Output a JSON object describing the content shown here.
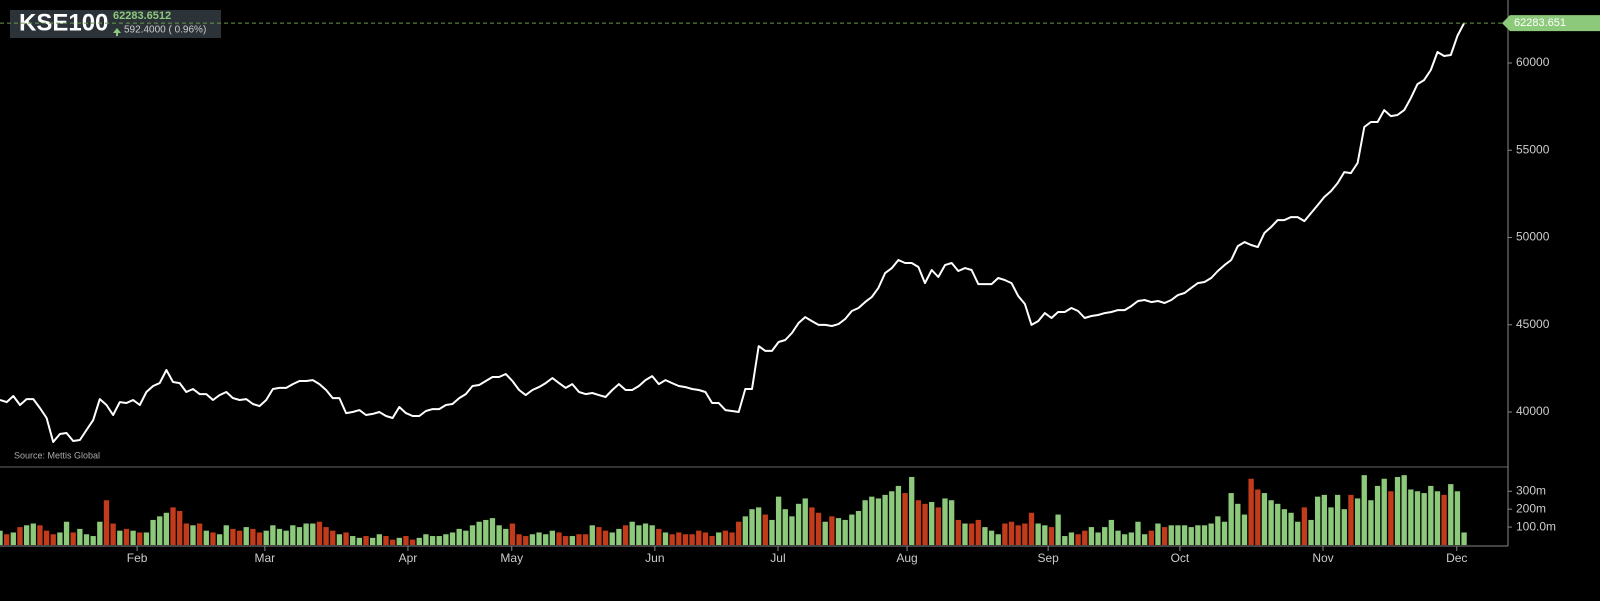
{
  "chart_data": {
    "type": "line",
    "title": "KSE100",
    "last_price": "62283.6512",
    "change": "592.4000 ( 0.96%)",
    "source": "Source: Mettis Global",
    "last_value_label": "62283.651",
    "color": "#ffffff",
    "grid": false,
    "xlim": [
      0,
      226.6
    ],
    "xticks": [
      {
        "value": 20.6,
        "label": "Feb"
      },
      {
        "value": 39.8,
        "label": "Mar"
      },
      {
        "value": 61.3,
        "label": "Apr"
      },
      {
        "value": 76.9,
        "label": "May"
      },
      {
        "value": 98.4,
        "label": "Jun"
      },
      {
        "value": 116.9,
        "label": "Jul"
      },
      {
        "value": 136.3,
        "label": "Aug"
      },
      {
        "value": 157.5,
        "label": "Sep"
      },
      {
        "value": 177.3,
        "label": "Oct"
      },
      {
        "value": 198.8,
        "label": "Nov"
      },
      {
        "value": 218.9,
        "label": "Dec"
      }
    ],
    "ylim": [
      36850,
      63610
    ],
    "yticks": [
      40000,
      45000,
      50000,
      55000,
      60000
    ],
    "values": [
      40690,
      40570,
      40920,
      40400,
      40740,
      40740,
      40230,
      39660,
      38280,
      38740,
      38800,
      38340,
      38400,
      38970,
      39540,
      40740,
      40400,
      39830,
      40570,
      40520,
      40690,
      40400,
      41150,
      41490,
      41660,
      42410,
      41720,
      41660,
      41150,
      41320,
      41030,
      41030,
      40690,
      40970,
      41150,
      40800,
      40690,
      40740,
      40460,
      40340,
      40690,
      41320,
      41380,
      41380,
      41600,
      41780,
      41780,
      41830,
      41600,
      41260,
      40800,
      40800,
      39940,
      40000,
      40110,
      39830,
      39890,
      40000,
      39770,
      39660,
      40290,
      39940,
      39770,
      39770,
      40060,
      40170,
      40170,
      40400,
      40460,
      40800,
      41030,
      41490,
      41550,
      41780,
      42010,
      42010,
      42180,
      41780,
      41260,
      40970,
      41260,
      41430,
      41660,
      41950,
      41660,
      41380,
      41600,
      41150,
      41030,
      41090,
      40970,
      40860,
      41260,
      41600,
      41260,
      41260,
      41490,
      41830,
      42060,
      41600,
      41830,
      41660,
      41490,
      41430,
      41320,
      41260,
      41150,
      40520,
      40520,
      40110,
      40060,
      40000,
      41320,
      41320,
      43780,
      43500,
      43500,
      44010,
      44130,
      44530,
      45100,
      45440,
      45210,
      44990,
      44990,
      44930,
      45040,
      45330,
      45790,
      45960,
      46300,
      46590,
      47110,
      47960,
      48250,
      48710,
      48540,
      48540,
      48310,
      47390,
      48140,
      47740,
      48420,
      48540,
      48080,
      48250,
      48140,
      47330,
      47330,
      47330,
      47680,
      47560,
      47390,
      46650,
      46190,
      44990,
      45210,
      45670,
      45390,
      45730,
      45730,
      45960,
      45790,
      45390,
      45500,
      45560,
      45670,
      45730,
      45840,
      45840,
      46070,
      46360,
      46420,
      46300,
      46360,
      46250,
      46420,
      46700,
      46820,
      47110,
      47390,
      47450,
      47680,
      48080,
      48420,
      48710,
      49510,
      49740,
      49570,
      49450,
      50260,
      50600,
      51000,
      51000,
      51170,
      51170,
      50940,
      51400,
      51860,
      52320,
      52660,
      53120,
      53750,
      53690,
      54270,
      56330,
      56620,
      56620,
      57300,
      56960,
      57020,
      57300,
      57990,
      58790,
      59020,
      59600,
      60630,
      60400,
      60460,
      61550,
      62283.6512
    ],
    "volume": {
      "up_color": "#8cc97a",
      "down_color": "#c23b1a",
      "ylim": [
        0,
        430
      ],
      "yticks": [
        {
          "value": 100,
          "label": "100.0m"
        },
        {
          "value": 200,
          "label": "200m"
        },
        {
          "value": 300,
          "label": "300m"
        }
      ],
      "values": [
        80,
        60,
        70,
        100,
        110,
        120,
        110,
        80,
        60,
        70,
        130,
        70,
        90,
        60,
        50,
        130,
        250,
        120,
        80,
        90,
        80,
        70,
        70,
        140,
        160,
        180,
        210,
        190,
        120,
        110,
        120,
        80,
        70,
        60,
        110,
        90,
        80,
        100,
        90,
        70,
        80,
        110,
        90,
        80,
        110,
        100,
        120,
        120,
        130,
        100,
        80,
        60,
        70,
        50,
        40,
        50,
        40,
        60,
        50,
        30,
        40,
        50,
        30,
        40,
        60,
        50,
        50,
        60,
        70,
        90,
        80,
        110,
        130,
        140,
        150,
        110,
        90,
        120,
        60,
        50,
        60,
        70,
        60,
        80,
        70,
        50,
        50,
        60,
        60,
        110,
        100,
        80,
        70,
        90,
        110,
        130,
        110,
        120,
        110,
        90,
        70,
        60,
        70,
        60,
        60,
        80,
        70,
        50,
        70,
        80,
        70,
        130,
        160,
        200,
        210,
        170,
        140,
        270,
        200,
        160,
        230,
        260,
        210,
        180,
        130,
        160,
        150,
        140,
        170,
        190,
        250,
        270,
        260,
        280,
        300,
        330,
        290,
        380,
        250,
        230,
        240,
        210,
        260,
        250,
        140,
        120,
        120,
        140,
        100,
        80,
        60,
        120,
        130,
        110,
        120,
        180,
        120,
        110,
        100,
        170,
        50,
        70,
        60,
        80,
        100,
        70,
        100,
        140,
        80,
        60,
        70,
        130,
        60,
        80,
        120,
        100,
        110,
        110,
        110,
        100,
        110,
        110,
        120,
        160,
        130,
        290,
        230,
        170,
        370,
        310,
        290,
        250,
        230,
        200,
        180,
        130,
        210,
        140,
        270,
        280,
        210,
        280,
        200,
        280,
        260,
        390,
        250,
        330,
        370,
        300,
        380,
        390,
        310,
        300,
        290,
        330,
        300,
        280,
        340,
        300,
        70
      ]
    }
  }
}
